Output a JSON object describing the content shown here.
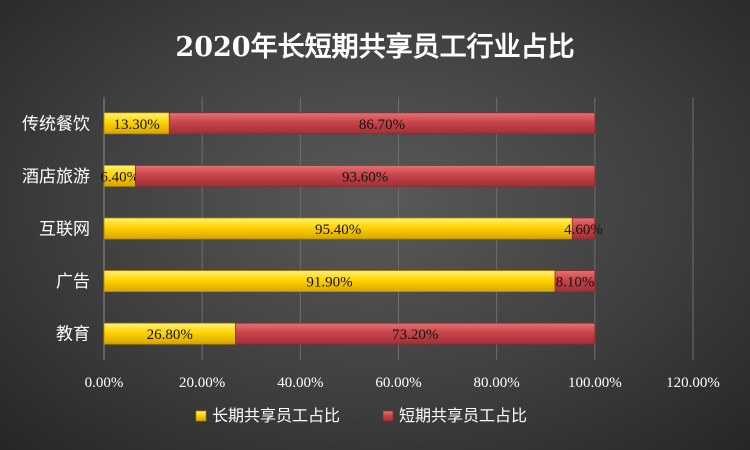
{
  "chart_data": {
    "type": "bar",
    "orientation": "horizontal",
    "stacked": true,
    "title": "2020年长短期共享员工行业占比",
    "categories": [
      "传统餐饮",
      "酒店旅游",
      "互联网",
      "广告",
      "教育"
    ],
    "series": [
      {
        "name": "长期共享员工占比",
        "color": "#ffd200",
        "values": [
          13.3,
          6.4,
          95.4,
          91.9,
          26.8
        ],
        "labels": [
          "13.30%",
          "6.40%",
          "95.40%",
          "91.90%",
          "26.80%"
        ]
      },
      {
        "name": "短期共享员工占比",
        "color": "#c9444a",
        "values": [
          86.7,
          93.6,
          4.6,
          8.1,
          73.2
        ],
        "labels": [
          "86.70%",
          "93.60%",
          "4.60%",
          "8.10%",
          "73.20%"
        ]
      }
    ],
    "xlim": [
      0,
      120
    ],
    "xticks": [
      "0.00%",
      "20.00%",
      "40.00%",
      "60.00%",
      "80.00%",
      "100.00%",
      "120.00%"
    ],
    "grid": true,
    "legend_position": "bottom"
  }
}
